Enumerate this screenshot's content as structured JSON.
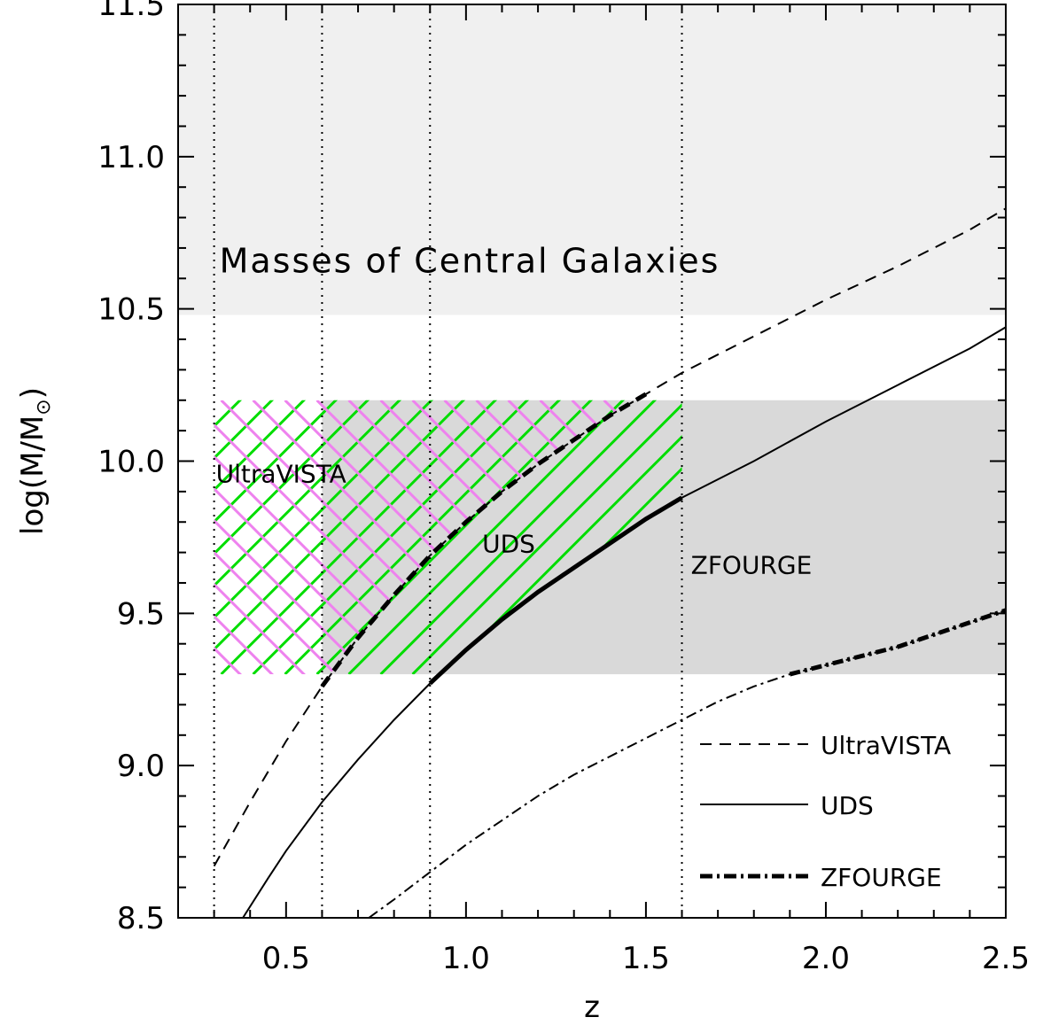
{
  "chart_data": {
    "type": "line",
    "xlabel": "z",
    "ylabel": "log(M/M",
    "ylabel_sub": "⊙",
    "ylabel_close": ")",
    "xlim": [
      0.2,
      2.5
    ],
    "ylim": [
      8.5,
      11.5
    ],
    "xticks": [
      0.5,
      1.0,
      1.5,
      2.0,
      2.5
    ],
    "xtick_labels": [
      "0.5",
      "1.0",
      "1.5",
      "2.0",
      "2.5"
    ],
    "yticks": [
      8.5,
      9.0,
      9.5,
      10.0,
      10.5,
      11.0,
      11.5
    ],
    "ytick_labels": [
      "8.5",
      "9.0",
      "9.5",
      "10.0",
      "10.5",
      "11.0",
      "11.5"
    ],
    "vertical_lines_z": [
      0.3,
      0.6,
      0.9,
      1.6
    ],
    "region_central": {
      "label": "Masses of Central Galaxies",
      "ymin": 10.48,
      "ymax": 11.5,
      "color": "#f0f0f0"
    },
    "region_samples": {
      "xmin": 0.6,
      "xmax": 2.5,
      "ymin": 9.3,
      "ymax": 10.2,
      "color": "#d9d9d9"
    },
    "region_labels": [
      {
        "text": "UltraVISTA",
        "x": 0.3,
        "y": 9.93
      },
      {
        "text": "UDS",
        "x": 1.04,
        "y": 9.7
      },
      {
        "text": "ZFOURGE",
        "x": 1.62,
        "y": 9.63
      }
    ],
    "hatch_colors": {
      "pink": "#ee82ee",
      "green": "#00dd00"
    },
    "series": [
      {
        "name": "UltraVISTA",
        "style": "dashed",
        "x": [
          0.3,
          0.4,
          0.5,
          0.6,
          0.7,
          0.8,
          0.9,
          1.0,
          1.1,
          1.2,
          1.3,
          1.4,
          1.5,
          1.6,
          1.8,
          2.0,
          2.2,
          2.4,
          2.5
        ],
        "y": [
          8.67,
          8.88,
          9.08,
          9.26,
          9.42,
          9.56,
          9.69,
          9.8,
          9.9,
          9.99,
          10.07,
          10.15,
          10.22,
          10.29,
          10.41,
          10.53,
          10.64,
          10.76,
          10.83
        ]
      },
      {
        "name": "UDS",
        "style": "solid",
        "x": [
          0.38,
          0.45,
          0.5,
          0.6,
          0.7,
          0.8,
          0.9,
          1.0,
          1.1,
          1.2,
          1.3,
          1.4,
          1.5,
          1.6,
          1.8,
          2.0,
          2.2,
          2.4,
          2.5
        ],
        "y": [
          8.5,
          8.63,
          8.72,
          8.88,
          9.02,
          9.15,
          9.27,
          9.38,
          9.48,
          9.57,
          9.65,
          9.73,
          9.81,
          9.88,
          10.0,
          10.13,
          10.25,
          10.37,
          10.44
        ]
      },
      {
        "name": "ZFOURGE",
        "style": "dashdot",
        "x": [
          0.73,
          0.8,
          0.9,
          1.0,
          1.1,
          1.2,
          1.3,
          1.4,
          1.5,
          1.6,
          1.7,
          1.8,
          1.9,
          2.0,
          2.1,
          2.2,
          2.3,
          2.4,
          2.5
        ],
        "y": [
          8.5,
          8.56,
          8.65,
          8.74,
          8.82,
          8.9,
          8.97,
          9.03,
          9.09,
          9.15,
          9.21,
          9.26,
          9.3,
          9.33,
          9.36,
          9.39,
          9.43,
          9.47,
          9.51
        ]
      }
    ],
    "legend": {
      "position": "bottom-right",
      "entries": [
        "UltraVISTA",
        "UDS",
        "ZFOURGE"
      ]
    }
  }
}
